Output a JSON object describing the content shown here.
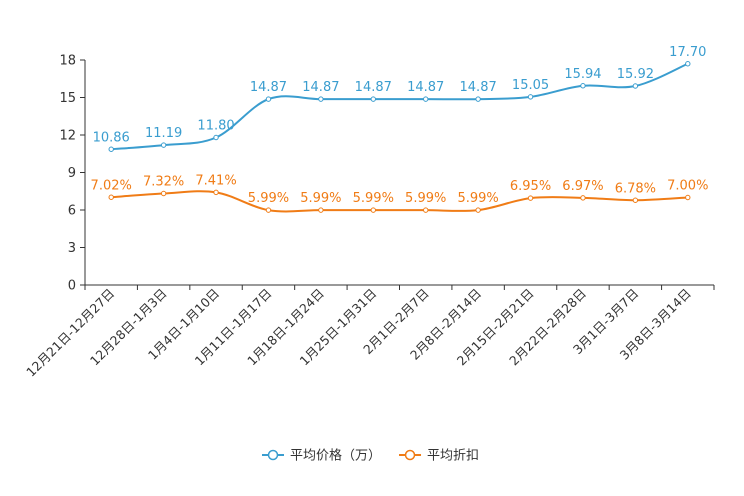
{
  "chart_data": {
    "type": "line",
    "title": "",
    "xlabel": "",
    "ylabel": "",
    "ylim": [
      0,
      18
    ],
    "yticks": [
      0,
      3,
      6,
      9,
      12,
      15,
      18
    ],
    "categories": [
      "12月21日-12月27日",
      "12月28日-1月3日",
      "1月4日-1月10日",
      "1月11日-1月17日",
      "1月18日-1月24日",
      "1月25日-1月31日",
      "2月1日-2月7日",
      "2月8日-2月14日",
      "2月15日-2月21日",
      "2月22日-2月28日",
      "3月1日-3月7日",
      "3月8日-3月14日"
    ],
    "series": [
      {
        "name": "平均价格（万）",
        "color": "#3a9dcf",
        "values": [
          10.86,
          11.19,
          11.8,
          14.87,
          14.87,
          14.87,
          14.87,
          14.87,
          15.05,
          15.94,
          15.92,
          17.7
        ],
        "labels": [
          "10.86",
          "11.19",
          "11.80",
          "14.87",
          "14.87",
          "14.87",
          "14.87",
          "14.87",
          "15.05",
          "15.94",
          "15.92",
          "17.70"
        ]
      },
      {
        "name": "平均折扣",
        "color": "#f07c16",
        "values": [
          7.02,
          7.32,
          7.41,
          5.99,
          5.99,
          5.99,
          5.99,
          5.99,
          6.95,
          6.97,
          6.78,
          7.0
        ],
        "labels": [
          "7.02%",
          "7.32%",
          "7.41%",
          "5.99%",
          "5.99%",
          "5.99%",
          "5.99%",
          "5.99%",
          "6.95%",
          "6.97%",
          "6.78%",
          "7.00%"
        ]
      }
    ],
    "legend_position": "bottom-center"
  }
}
